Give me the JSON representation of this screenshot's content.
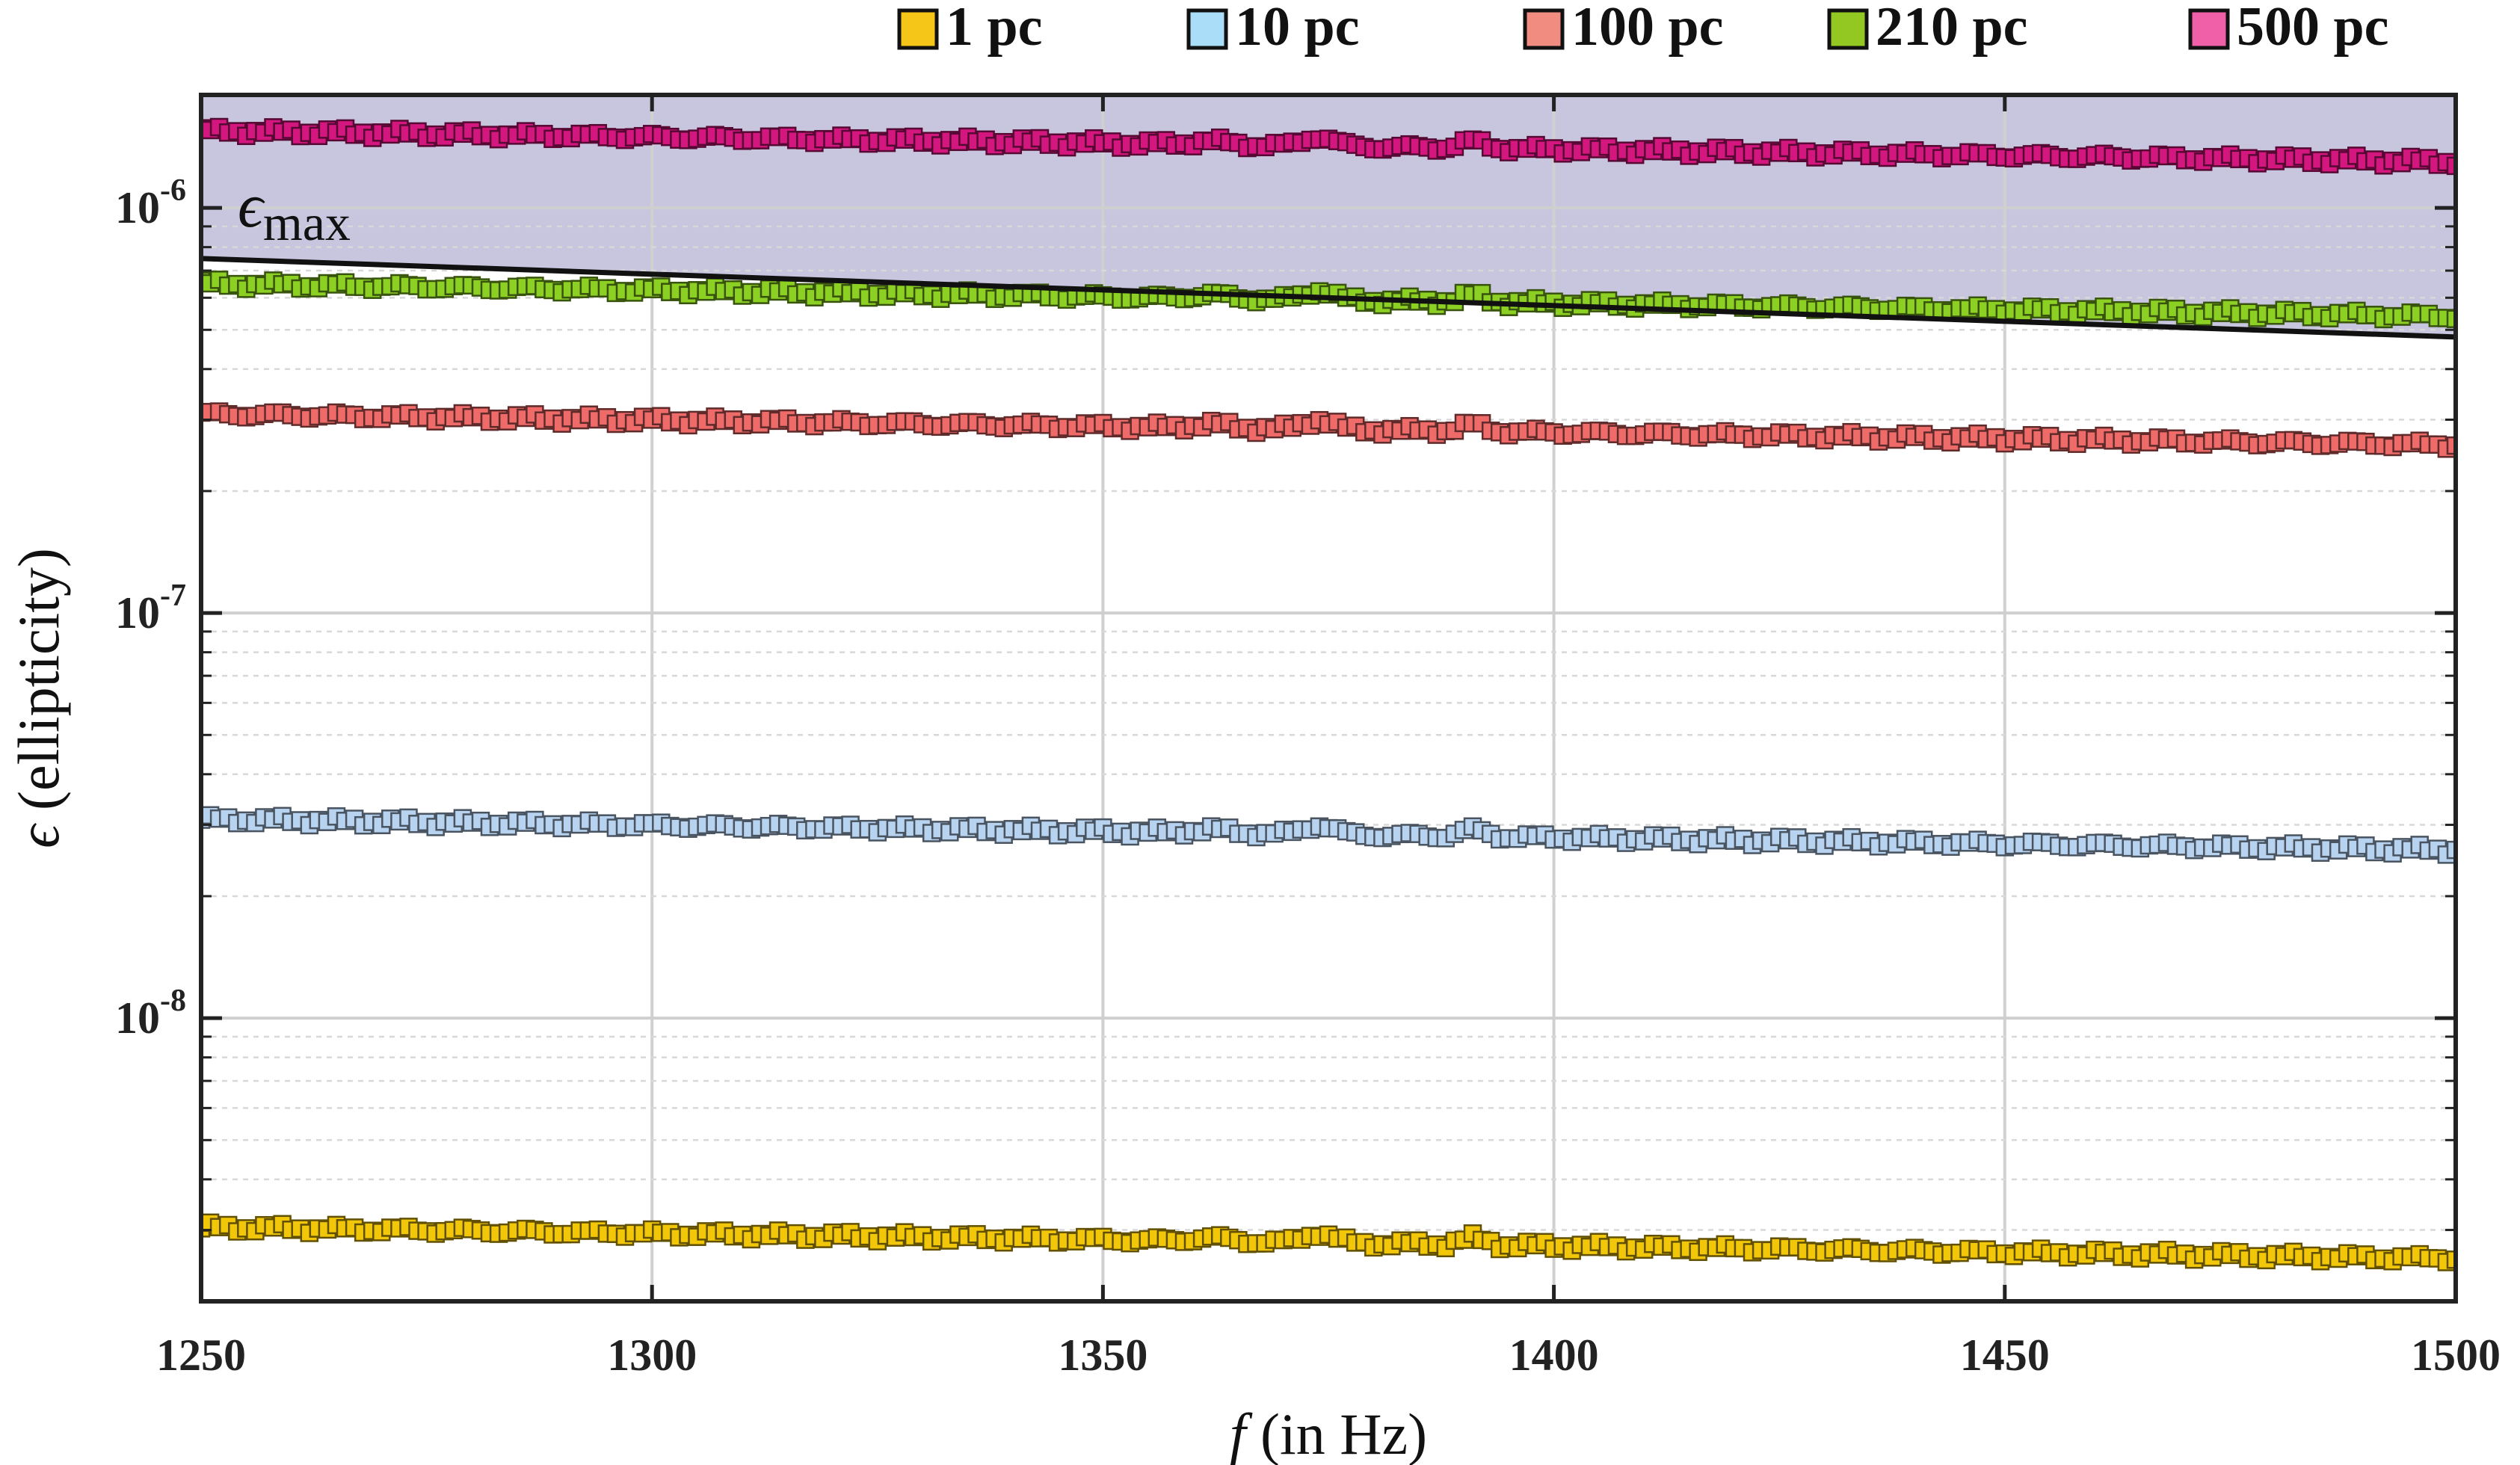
{
  "chart_data": {
    "type": "scatter",
    "title": "",
    "xlabel_var": "f",
    "xlabel_unit": "(in Hz)",
    "ylabel_var": "ϵ",
    "ylabel_unit": "(ellipticity)",
    "xlim": [
      1250,
      1500
    ],
    "ylim": [
      2e-09,
      1.9e-06
    ],
    "yscale": "log",
    "grid": true,
    "legend_position": "top",
    "x_ticks": [
      1250,
      1300,
      1350,
      1400,
      1450,
      1500
    ],
    "x_tick_labels": [
      "1250",
      "1300",
      "1350",
      "1400",
      "1450",
      "1500"
    ],
    "y_ticks": [
      1e-08,
      1e-07,
      1e-06
    ],
    "y_tick_labels": [
      {
        "base": "10",
        "exp": "-8"
      },
      {
        "base": "10",
        "exp": "-7"
      },
      {
        "base": "10",
        "exp": "-6"
      }
    ],
    "marker": "square",
    "series": [
      {
        "name": "1 pc",
        "color": "#F2C70A",
        "legend_color": "#F5C518",
        "start": 3.05e-09,
        "end": 2.55e-09
      },
      {
        "name": "10 pc",
        "color": "#B7D3F0",
        "legend_color": "#A9DDF8",
        "start": 3.1e-08,
        "end": 2.6e-08
      },
      {
        "name": "100 pc",
        "color": "#EE6B69",
        "legend_color": "#F08C80",
        "start": 3.1e-07,
        "end": 2.6e-07
      },
      {
        "name": "210 pc",
        "color": "#8CD024",
        "legend_color": "#93C722",
        "start": 6.5e-07,
        "end": 5.4e-07
      },
      {
        "name": "500 pc",
        "color": "#D4167F",
        "legend_color": "#F060A8",
        "start": 1.55e-06,
        "end": 1.3e-06
      }
    ],
    "epsilon_max": {
      "label_symbol": "ϵ",
      "label_sub": "max",
      "line": [
        [
          1250,
          7.5e-07
        ],
        [
          1500,
          4.8e-07
        ]
      ],
      "shaded_color": "#C5C3DD",
      "line_color": "#111111"
    }
  }
}
